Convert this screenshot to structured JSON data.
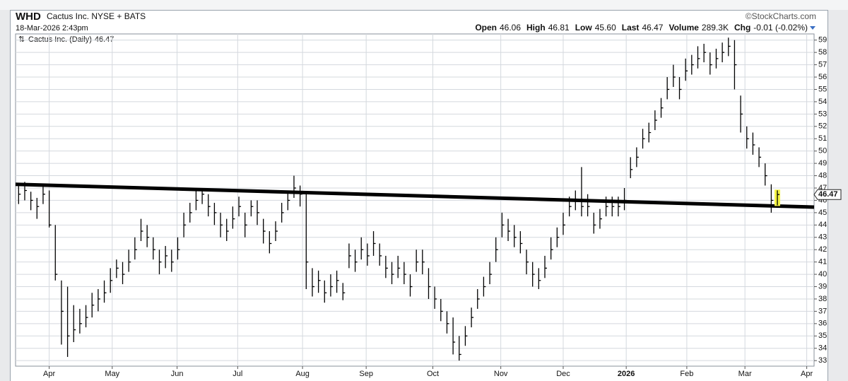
{
  "chart_data": {
    "type": "hlc",
    "title": "WHD",
    "subtitle": "Cactus Inc. NYSE + BATS",
    "timestamp": "18-Mar-2026 2:43pm",
    "source": "©StockCharts.com",
    "quote": [
      {
        "label": "Open",
        "value": "46.06"
      },
      {
        "label": "High",
        "value": "46.81"
      },
      {
        "label": "Low",
        "value": "45.60"
      },
      {
        "label": "Last",
        "value": "46.47"
      },
      {
        "label": "Volume",
        "value": "289.3K"
      },
      {
        "label": "Chg",
        "value": "-0.01 (-0.02%)"
      }
    ],
    "last": 46.47,
    "categories": [
      null,
      null,
      null,
      null,
      null,
      null,
      null,
      null,
      null,
      null,
      null,
      null,
      null,
      null,
      null,
      null,
      null,
      null,
      null,
      null,
      null,
      null,
      null,
      null,
      null,
      null,
      null,
      null,
      null,
      null,
      null,
      null,
      null,
      null,
      null,
      null,
      null,
      null,
      null,
      null,
      null,
      null,
      null,
      null,
      null,
      null,
      null,
      null,
      null,
      null,
      null,
      null,
      null,
      null,
      null,
      null,
      null,
      null,
      null,
      null,
      null,
      null,
      null,
      null,
      null,
      null,
      null,
      null,
      null,
      null,
      null,
      null,
      null,
      null,
      null,
      null,
      null,
      null,
      null,
      null,
      null,
      null,
      null,
      null,
      null,
      null,
      null,
      null,
      null,
      null,
      null,
      null,
      null,
      null,
      null,
      null,
      null,
      null,
      null,
      null,
      null,
      null,
      null,
      null,
      null,
      null,
      null,
      null,
      null,
      null,
      null,
      null,
      null,
      null,
      null,
      null,
      null,
      null,
      null,
      null,
      null,
      null,
      null,
      null,
      null
    ],
    "series": [
      {
        "name": "Cactus Inc. (Daily)",
        "color": "#000000",
        "last_color": "#f5f542",
        "high": [
          47.2,
          47.5,
          46.7,
          46.2,
          47.2,
          46.8,
          44,
          39.5,
          39,
          37.5,
          37.2,
          37.5,
          38.5,
          38.8,
          39.5,
          40.5,
          41.2,
          41,
          42,
          43,
          44.5,
          44,
          43,
          42,
          42.3,
          42,
          43,
          45,
          45.8,
          46.8,
          47,
          46.5,
          45.8,
          45,
          44.5,
          45.5,
          46.3,
          45,
          46,
          46,
          44.5,
          43.5,
          44.3,
          45.8,
          46.8,
          48,
          47.2,
          46.7,
          40.5,
          40.3,
          39.5,
          40,
          40.3,
          39.3,
          42.5,
          42,
          43,
          42.5,
          43.5,
          42.5,
          41.5,
          41,
          41.5,
          41,
          40,
          42,
          42,
          40.5,
          39,
          38,
          37,
          36.5,
          35,
          35.8,
          37.3,
          38.8,
          39.8,
          41,
          43,
          45,
          44.5,
          44,
          43.5,
          42,
          41,
          40.5,
          41.5,
          43,
          43.8,
          45,
          46.3,
          46.8,
          48.7,
          46.5,
          45,
          45.3,
          46.3,
          46.3,
          46.3,
          47,
          49.5,
          50.3,
          51.8,
          52.3,
          53.3,
          54.3,
          56,
          57,
          56,
          57.5,
          57.8,
          58.5,
          58.7,
          58,
          58.3,
          58.8,
          59.2,
          59,
          54.5,
          52,
          51.5,
          50.3,
          49,
          47.3,
          46.81
        ],
        "low": [
          45.7,
          46,
          45.2,
          44.5,
          45.7,
          43.8,
          39.5,
          34.3,
          33.3,
          34.5,
          35.2,
          35.7,
          36.5,
          37,
          37.7,
          38.5,
          39.7,
          39.2,
          40.2,
          41.2,
          42.7,
          42.2,
          41.2,
          40,
          40.5,
          40.2,
          41.2,
          43,
          44.2,
          45.2,
          45.7,
          44.7,
          44,
          43,
          42.7,
          43.7,
          44.7,
          43,
          44.7,
          44,
          42.5,
          41.7,
          42.7,
          44.2,
          45.2,
          46.2,
          45.5,
          38.8,
          38.2,
          38.5,
          37.7,
          38.2,
          38.5,
          37.9,
          40.5,
          40.2,
          41.2,
          40.7,
          41.5,
          40.7,
          39.7,
          39.2,
          39.7,
          39.2,
          38.2,
          40.2,
          40,
          38,
          37.2,
          36.2,
          35.2,
          33.5,
          33,
          34.2,
          35.7,
          37.2,
          38.2,
          39.2,
          41,
          43,
          42.7,
          42.2,
          41.7,
          40,
          39,
          38.8,
          39.7,
          41.2,
          42.2,
          43.2,
          44.7,
          45.2,
          44.7,
          44.7,
          43.3,
          43.7,
          44.7,
          44.7,
          44.7,
          45.2,
          47.8,
          48.7,
          50.2,
          50.7,
          51.7,
          52.7,
          54.2,
          55.2,
          54.2,
          55.7,
          56.2,
          56.7,
          57.2,
          56.2,
          56.7,
          57.2,
          57.7,
          55,
          51.5,
          50.2,
          49.7,
          48.7,
          47.2,
          45,
          45.6
        ],
        "close": [
          46.5,
          46.8,
          46,
          45.5,
          46.5,
          44,
          40,
          37,
          35,
          35.5,
          36,
          36.5,
          37.5,
          38,
          38.5,
          39.5,
          40.5,
          40,
          41,
          42,
          43.5,
          43,
          42,
          41,
          41.5,
          41,
          42,
          44,
          45,
          46,
          46.5,
          45.5,
          45,
          44,
          43.5,
          44.5,
          45.5,
          44,
          45.5,
          45,
          43.5,
          42.5,
          43.5,
          45,
          46,
          47,
          46.5,
          41,
          39,
          39.5,
          38.5,
          39,
          39.5,
          38.5,
          41.5,
          41,
          42,
          41.5,
          42.5,
          41.5,
          40.5,
          40,
          40.5,
          40,
          39,
          41,
          41,
          39,
          38,
          37,
          36,
          34.5,
          33.5,
          35,
          36.5,
          38,
          39,
          40,
          42,
          44,
          43.5,
          43,
          42.5,
          41,
          40,
          39.5,
          40.5,
          42,
          43,
          44,
          45.5,
          46,
          45.5,
          45.5,
          44,
          44.5,
          45.5,
          45.5,
          45.5,
          46,
          48.5,
          49.5,
          51,
          51.5,
          52.5,
          53.5,
          55,
          56,
          55,
          56.5,
          57,
          57.5,
          58,
          57,
          57.5,
          58,
          58.5,
          57,
          53,
          51,
          50.5,
          49.5,
          48,
          46,
          46.47
        ]
      }
    ],
    "trendline": {
      "y_start": 47.3,
      "y_end": 45.45,
      "color": "#000000"
    },
    "xlim": [
      -0.5,
      130
    ],
    "xticks": [
      {
        "value": 5,
        "label": "Apr"
      },
      {
        "value": 15.3,
        "label": "May"
      },
      {
        "value": 25.9,
        "label": "Jun"
      },
      {
        "value": 35.8,
        "label": "Jul"
      },
      {
        "value": 46.4,
        "label": "Aug"
      },
      {
        "value": 56.8,
        "label": "Sep"
      },
      {
        "value": 67.7,
        "label": "Oct"
      },
      {
        "value": 78.8,
        "label": "Nov"
      },
      {
        "value": 89,
        "label": "Dec"
      },
      {
        "value": 99.3,
        "label": "2026"
      },
      {
        "value": 109.2,
        "label": "Feb"
      },
      {
        "value": 118.7,
        "label": "Mar"
      },
      {
        "value": 128.8,
        "label": "Apr"
      }
    ],
    "ylim": [
      32.55,
      59.5
    ],
    "yticks": [
      33,
      34,
      35,
      36,
      37,
      38,
      39,
      40,
      41,
      42,
      43,
      44,
      45,
      46,
      47,
      48,
      49,
      50,
      51,
      52,
      53,
      54,
      55,
      56,
      57,
      58,
      59
    ],
    "grid": true
  }
}
